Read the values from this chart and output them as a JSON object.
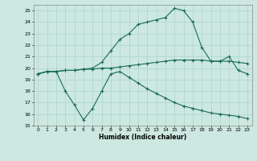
{
  "xlabel": "Humidex (Indice chaleur)",
  "bg_color": "#cce8e0",
  "grid_color": "#b0d8d0",
  "line_color": "#1a6b5a",
  "xlim": [
    0,
    23
  ],
  "ylim": [
    15,
    25.5
  ],
  "yticks": [
    15,
    16,
    17,
    18,
    19,
    20,
    21,
    22,
    23,
    24,
    25
  ],
  "xticks": [
    0,
    1,
    2,
    3,
    4,
    5,
    6,
    7,
    8,
    9,
    10,
    11,
    12,
    13,
    14,
    15,
    16,
    17,
    18,
    19,
    20,
    21,
    22,
    23
  ],
  "series": [
    {
      "x": [
        0,
        1,
        2,
        3,
        4,
        5,
        6,
        7,
        8,
        9,
        10,
        11,
        12,
        13,
        14,
        15,
        16,
        17,
        18,
        19,
        20,
        21,
        22,
        23
      ],
      "y": [
        19.5,
        19.7,
        19.7,
        19.8,
        19.8,
        19.9,
        19.9,
        20.0,
        20.0,
        20.1,
        20.2,
        20.3,
        20.4,
        20.5,
        20.6,
        20.7,
        20.7,
        20.7,
        20.7,
        20.6,
        20.6,
        20.6,
        20.5,
        20.4
      ]
    },
    {
      "x": [
        0,
        1,
        2,
        3,
        4,
        5,
        6,
        7,
        8,
        9,
        10,
        11,
        12,
        13,
        14,
        15,
        16,
        17,
        18,
        19,
        20,
        21,
        22,
        23
      ],
      "y": [
        19.5,
        19.7,
        19.7,
        19.8,
        19.8,
        19.9,
        20.0,
        20.5,
        21.5,
        22.5,
        23.0,
        23.8,
        24.0,
        24.2,
        24.4,
        25.2,
        25.0,
        24.0,
        21.8,
        20.6,
        20.6,
        21.0,
        19.8,
        19.5
      ]
    },
    {
      "x": [
        0,
        1,
        2,
        3,
        4,
        5,
        6,
        7,
        8,
        9,
        10,
        11,
        12,
        13,
        14,
        15,
        16,
        17,
        18,
        19,
        20,
        21,
        22,
        23
      ],
      "y": [
        19.5,
        19.7,
        19.7,
        18.0,
        16.8,
        15.5,
        16.5,
        18.0,
        19.5,
        19.7,
        19.2,
        18.7,
        18.2,
        17.8,
        17.4,
        17.0,
        16.7,
        16.5,
        16.3,
        16.1,
        16.0,
        15.9,
        15.8,
        15.6
      ]
    }
  ]
}
